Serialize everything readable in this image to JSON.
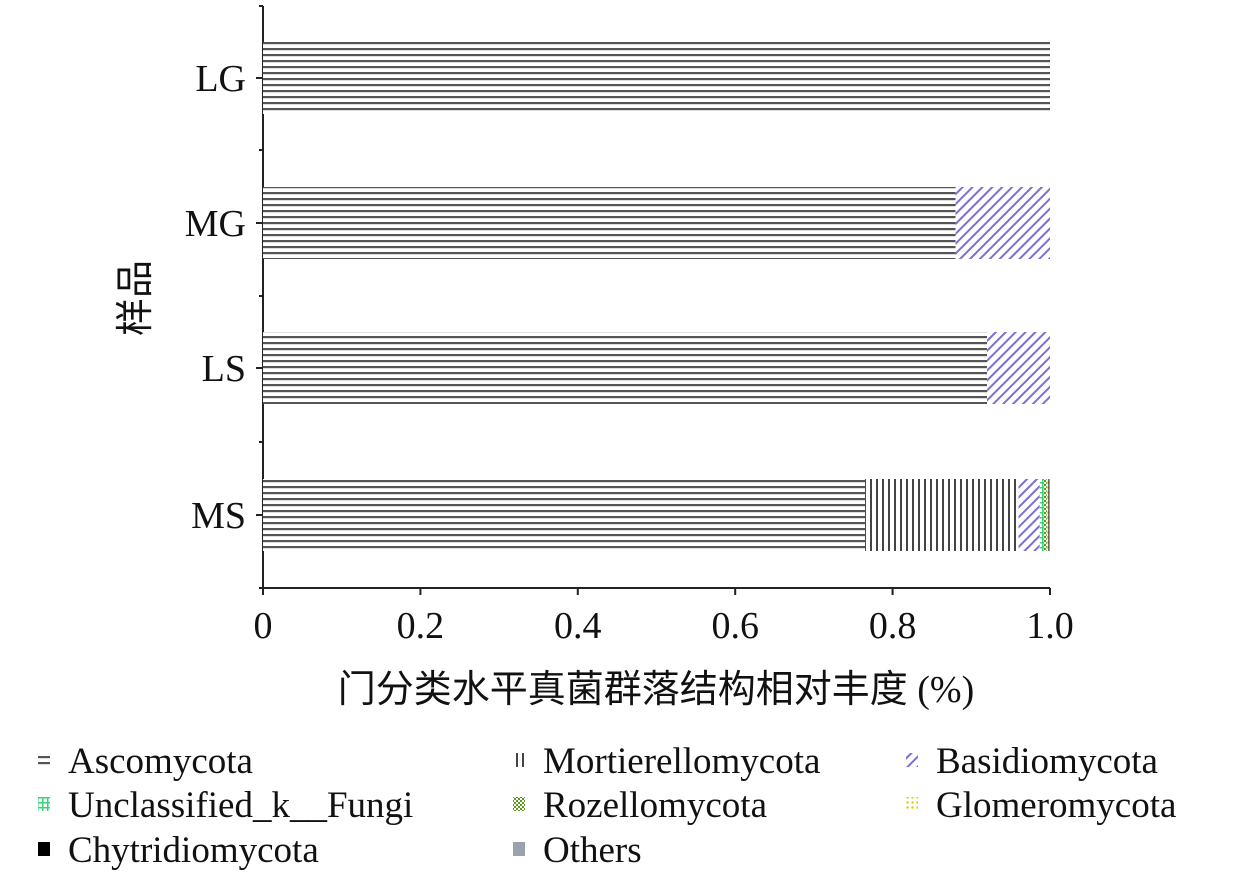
{
  "chart_data": {
    "type": "bar",
    "orientation": "horizontal",
    "stacked": true,
    "xlabel": "门分类水平真菌群落结构相对丰度 (%)",
    "ylabel": "样品",
    "xlim": [
      0,
      1.0
    ],
    "xticks": [
      "0",
      "0.2",
      "0.4",
      "0.6",
      "0.8",
      "1.0"
    ],
    "categories": [
      "LG",
      "MG",
      "LS",
      "MS"
    ],
    "series": [
      {
        "name": "Ascomycota",
        "values": [
          1.0,
          0.88,
          0.92,
          0.765
        ],
        "color": "#555555",
        "pattern": "hlines"
      },
      {
        "name": "Mortierellomycota",
        "values": [
          0.0,
          0.0,
          0.0,
          0.195
        ],
        "color": "#555555",
        "pattern": "vlines"
      },
      {
        "name": "Basidiomycota",
        "values": [
          0.0,
          0.12,
          0.08,
          0.027
        ],
        "color": "#7b6fd6",
        "pattern": "diag"
      },
      {
        "name": "Unclassified_k__Fungi",
        "values": [
          0.0,
          0.0,
          0.0,
          0.005
        ],
        "color": "#3fd07a",
        "pattern": "cross"
      },
      {
        "name": "Rozellomycota",
        "values": [
          0.0,
          0.0,
          0.0,
          0.004
        ],
        "color": "#5a9a1a",
        "pattern": "check"
      },
      {
        "name": "Glomeromycota",
        "values": [
          0.0,
          0.0,
          0.0,
          0.002
        ],
        "color": "#d8d000",
        "pattern": "dots"
      },
      {
        "name": "Chytridiomycota",
        "values": [
          0.0,
          0.0,
          0.0,
          0.001
        ],
        "color": "#000000",
        "pattern": "solid"
      },
      {
        "name": "Others",
        "values": [
          0.0,
          0.0,
          0.0,
          0.001
        ],
        "color": "#9aa2ad",
        "pattern": "solid"
      }
    ],
    "legend": {
      "position": "bottom",
      "columns": 3
    }
  }
}
